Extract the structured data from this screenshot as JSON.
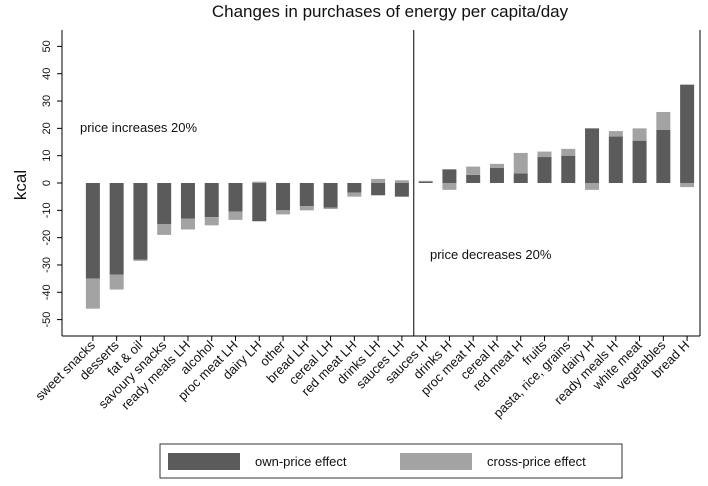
{
  "chart_data": {
    "type": "stacked-bar",
    "title": "Changes in purchases of energy per capita/day",
    "y_label": "kcal",
    "annotations": [
      "price increases 20%",
      "price decreases 20%"
    ],
    "categories": [
      "sweet snacks",
      "desserts",
      "fat & oil",
      "savoury snacks",
      "ready meals LH",
      "alcohol",
      "proc meat LH",
      "dairy LH",
      "other",
      "bread LH",
      "cereal LH",
      "red meat LH",
      "drinks LH",
      "sauces LH",
      "sauces H",
      "drinks H",
      "proc meat H",
      "cereal H",
      "red meat H",
      "fruits",
      "pasta, rice, grains",
      "dairy H",
      "ready meals H",
      "white meat",
      "vegetables",
      "bread H"
    ],
    "series": [
      {
        "name": "own-price effect",
        "color": "#5b5b5b",
        "values": [
          -35,
          -33.5,
          -28,
          -15,
          -13,
          -12.5,
          -10.5,
          -14,
          -10,
          -8.5,
          -9,
          -3.5,
          -4.5,
          -5,
          0.5,
          5,
          3,
          5.5,
          3.5,
          9.5,
          10,
          20,
          17,
          15.5,
          19.5,
          36
        ]
      },
      {
        "name": "cross-price effect",
        "color": "#a3a3a3",
        "values": [
          -11,
          -5.5,
          -0.5,
          -4,
          -4,
          -3,
          -3,
          0.5,
          -1.5,
          -1.5,
          -0.5,
          -1.5,
          1.5,
          1,
          0.3,
          -2.5,
          3,
          1.5,
          7.5,
          2,
          2.5,
          -2.5,
          2,
          4.5,
          6.5,
          -1.5
        ]
      }
    ],
    "ylim": [
      -56,
      56
    ],
    "yticks": [
      -50,
      -40,
      -30,
      -20,
      -10,
      0,
      10,
      20,
      30,
      40,
      50
    ],
    "legend": "bottom"
  }
}
